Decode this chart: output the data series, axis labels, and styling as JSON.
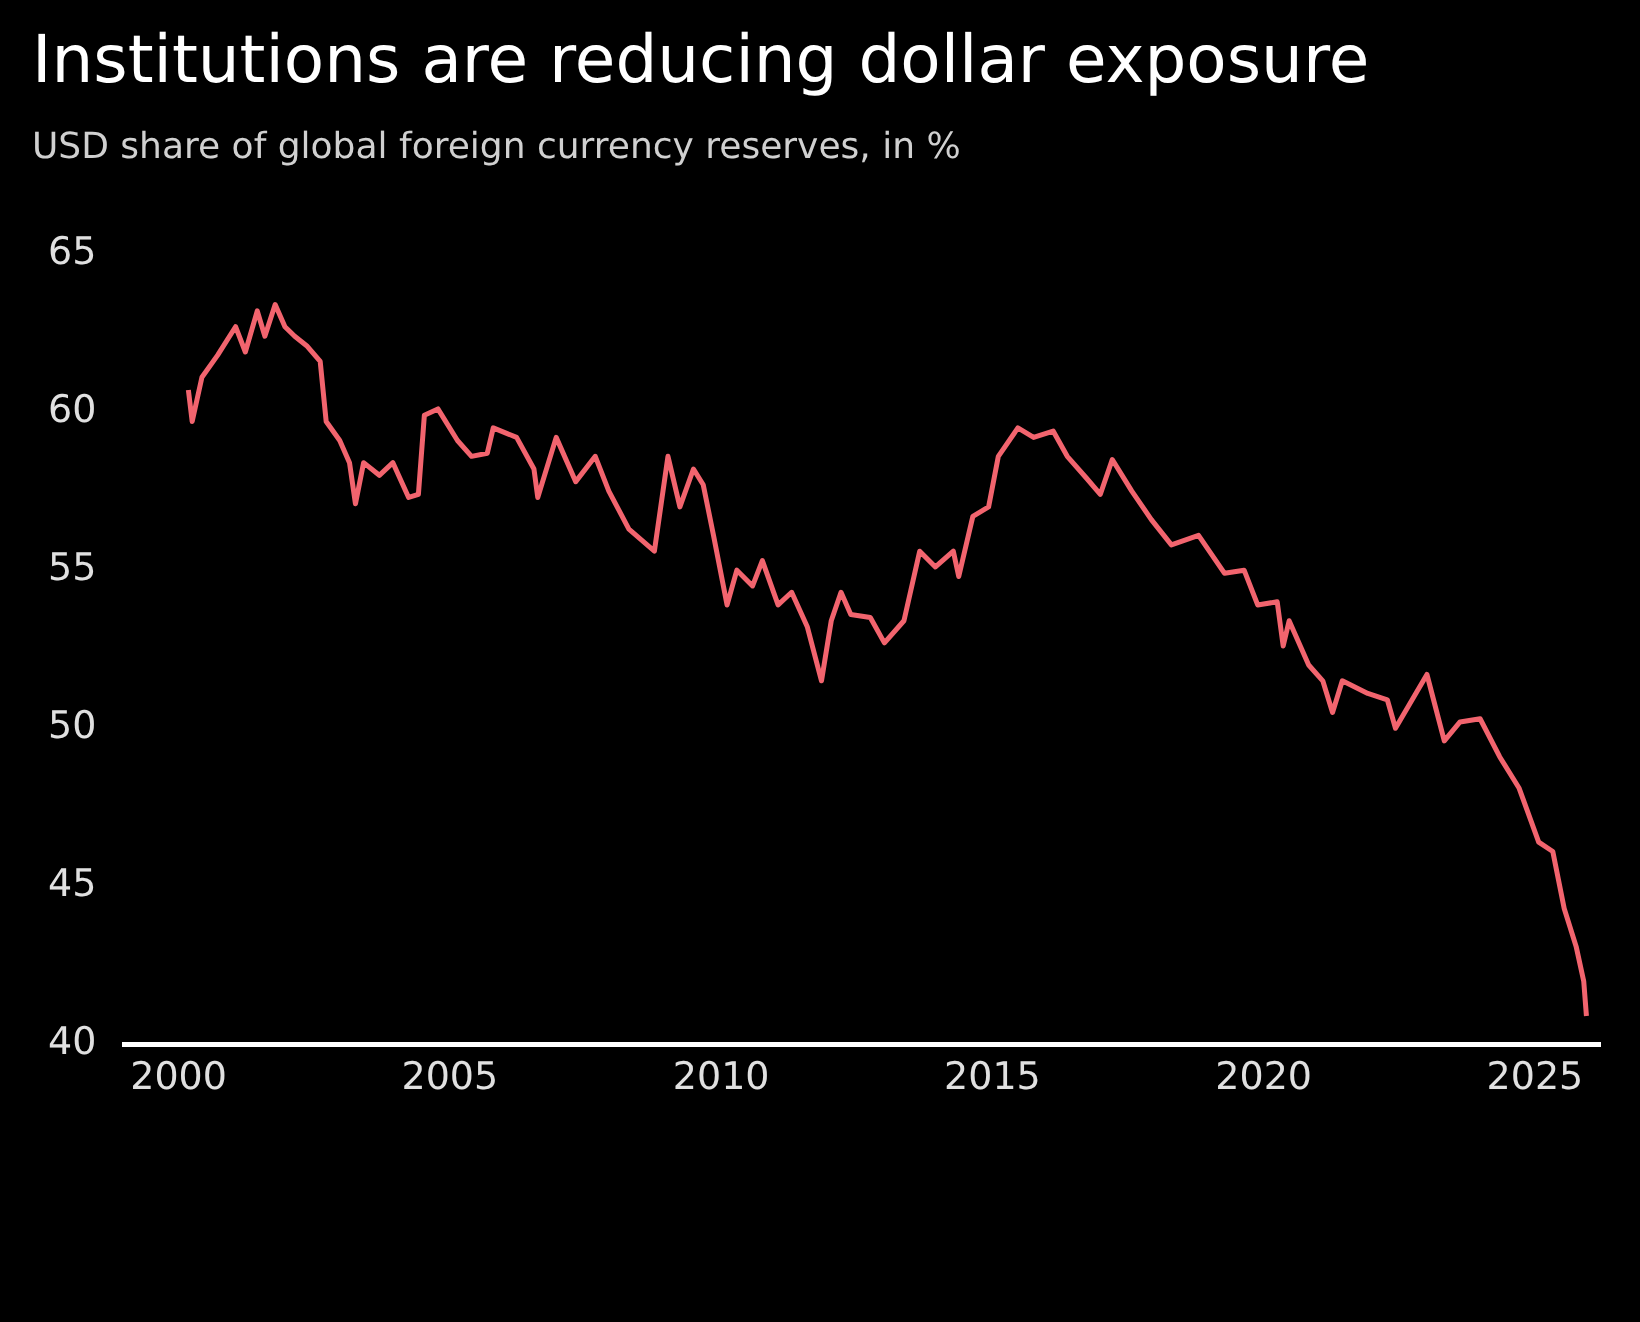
{
  "chart_data": {
    "type": "line",
    "title": "Institutions are reducing dollar exposure",
    "subtitle": "USD share of global foreign currency reserves, in %",
    "xlim": [
      1999,
      2026.2
    ],
    "xticks": [
      2000,
      2005,
      2010,
      2015,
      2020,
      2025
    ],
    "ylim": [
      40,
      65
    ],
    "yticks": [
      40,
      45,
      50,
      55,
      60,
      65
    ],
    "marker": "none",
    "series": [
      {
        "color": "#f2646e",
        "x": [
          2000.18,
          2000.25,
          2000.43,
          2000.72,
          2001.05,
          2001.23,
          2001.45,
          2001.59,
          2001.78,
          2001.96,
          2002.14,
          2002.36,
          2002.61,
          2002.72,
          2002.97,
          2003.15,
          2003.26,
          2003.41,
          2003.7,
          2003.95,
          2004.24,
          2004.42,
          2004.53,
          2004.78,
          2005.14,
          2005.4,
          2005.69,
          2005.8,
          2006.23,
          2006.55,
          2006.62,
          2006.96,
          2007.32,
          2007.68,
          2007.93,
          2008.3,
          2008.77,
          2009.02,
          2009.24,
          2009.49,
          2009.67,
          2009.86,
          2010.11,
          2010.29,
          2010.58,
          2010.76,
          2011.05,
          2011.3,
          2011.59,
          2011.85,
          2012.03,
          2012.21,
          2012.39,
          2012.75,
          2013.01,
          2013.37,
          2013.66,
          2013.95,
          2014.28,
          2014.38,
          2014.64,
          2014.93,
          2015.11,
          2015.47,
          2015.76,
          2016.12,
          2016.38,
          2016.74,
          2016.99,
          2017.21,
          2017.57,
          2017.93,
          2018.3,
          2018.8,
          2019.28,
          2019.64,
          2019.89,
          2020.25,
          2020.36,
          2020.47,
          2020.83,
          2021.09,
          2021.27,
          2021.45,
          2021.92,
          2022.28,
          2022.43,
          2023.01,
          2023.33,
          2023.62,
          2023.99,
          2024.35,
          2024.71,
          2025.07,
          2025.33,
          2025.54,
          2025.76,
          2025.9,
          2025.95
        ],
        "values": [
          60.7,
          59.7,
          61.1,
          61.8,
          62.7,
          61.9,
          63.2,
          62.4,
          63.4,
          62.7,
          62.4,
          62.1,
          61.6,
          59.7,
          59.1,
          58.4,
          57.1,
          58.4,
          58.0,
          58.4,
          57.3,
          57.4,
          59.9,
          60.1,
          59.1,
          58.6,
          58.7,
          59.5,
          59.2,
          58.2,
          57.3,
          59.2,
          57.8,
          58.6,
          57.5,
          56.3,
          55.6,
          58.6,
          57.0,
          58.2,
          57.7,
          56.1,
          53.9,
          55.0,
          54.5,
          55.3,
          53.9,
          54.3,
          53.2,
          51.5,
          53.4,
          54.3,
          53.6,
          53.5,
          52.7,
          53.4,
          55.6,
          55.1,
          55.6,
          54.8,
          56.7,
          57.0,
          58.6,
          59.5,
          59.2,
          59.4,
          58.6,
          57.9,
          57.4,
          58.5,
          57.5,
          56.6,
          55.8,
          56.1,
          54.9,
          55.0,
          53.9,
          54.0,
          52.6,
          53.4,
          52.0,
          51.5,
          50.5,
          51.5,
          51.1,
          50.9,
          50.0,
          51.7,
          49.6,
          50.2,
          50.3,
          49.1,
          48.1,
          46.4,
          46.1,
          44.3,
          43.1,
          42.0,
          40.9
        ]
      }
    ]
  }
}
